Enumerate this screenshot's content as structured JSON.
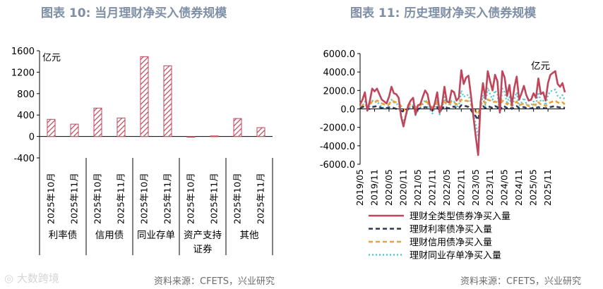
{
  "titles": {
    "left": "图表 10: 当月理财净买入债券规模",
    "right": "图表 11: 历史理财净买入债券规模"
  },
  "sources": {
    "left": "资料来源：CFETS，兴业研究",
    "right": "资料来源：CFETS，兴业研究"
  },
  "watermark": "大数跨境",
  "colors": {
    "bar_stroke": "#c0455b",
    "total": "#c0455b",
    "rate": "#2f3a56",
    "credit": "#e8a33b",
    "cd": "#56c8d0"
  },
  "chart_data": [
    {
      "type": "bar",
      "unit_label": "亿元",
      "ylim": [
        -400,
        1600
      ],
      "yticks": [
        -400,
        0,
        400,
        800,
        1200,
        1600
      ],
      "ytick_labels": [
        "-400",
        "0",
        "400",
        "800",
        "1200",
        "1600"
      ],
      "categories": [
        "2025年10月",
        "2025年11月",
        "2025年10月",
        "2025年11月",
        "2025年10月",
        "2025年11月",
        "2025年10月",
        "2025年11月",
        "2025年10月",
        "2025年11月"
      ],
      "groups": [
        {
          "name": "利率债",
          "lines": [
            "利率债"
          ]
        },
        {
          "name": "信用债",
          "lines": [
            "信用债"
          ]
        },
        {
          "name": "同业存单",
          "lines": [
            "同业存单"
          ]
        },
        {
          "name": "资产支持证券",
          "lines": [
            "资产支持",
            "证券"
          ]
        },
        {
          "name": "其他",
          "lines": [
            "其他"
          ]
        }
      ],
      "values": [
        320,
        230,
        530,
        345,
        1490,
        1320,
        -10,
        10,
        335,
        165
      ],
      "bar_style": "hatched"
    },
    {
      "type": "line",
      "unit_label": "亿元",
      "ylim": [
        -6000,
        6000
      ],
      "yticks": [
        -6000,
        -4000,
        -2000,
        0,
        2000,
        4000,
        6000
      ],
      "ytick_labels": [
        "-6000.0",
        "-4000.0",
        "-2000.0",
        "0.0",
        "2000.0",
        "4000.0",
        "6000.0"
      ],
      "x_tick_labels": [
        "2019/05",
        "2019/11",
        "2020/05",
        "2020/11",
        "2021/05",
        "2021/11",
        "2022/05",
        "2022/11",
        "2023/05",
        "2023/11",
        "2024/05",
        "2024/11",
        "2025/05",
        "2025/11"
      ],
      "legend_position": "bottom",
      "series": [
        {
          "name": "理财全类型债券净买入量",
          "style": "solid",
          "values": [
            500,
            1000,
            1800,
            -200,
            800,
            2200,
            1900,
            2200,
            1600,
            1000,
            800,
            600,
            1300,
            2400,
            1700,
            1600,
            1200,
            -800,
            -1900,
            -700,
            400,
            900,
            1200,
            -600,
            400,
            500,
            1300,
            2000,
            1600,
            300,
            -200,
            600,
            1800,
            -400,
            400,
            2400,
            800,
            700,
            2000,
            1800,
            900,
            1200,
            4200,
            2700,
            3400,
            3600,
            1500,
            -800,
            -3000,
            -5000,
            700,
            2800,
            1100,
            4100,
            3000,
            2000,
            3700,
            3000,
            -400,
            4100,
            3400,
            1400,
            2600,
            400,
            2300,
            3500,
            1000,
            1700,
            2500,
            1500,
            900,
            1000,
            1700,
            1200,
            3300,
            1600,
            1800,
            900,
            2800,
            3700,
            3900,
            4100,
            2700,
            2400,
            2800,
            1800
          ]
        },
        {
          "name": "理财利率债净买入量",
          "style": "dashed",
          "values": [
            100,
            200,
            300,
            50,
            0,
            200,
            250,
            300,
            200,
            100,
            50,
            100,
            150,
            200,
            100,
            0,
            -100,
            -200,
            -300,
            -100,
            0,
            100,
            200,
            -200,
            0,
            50,
            100,
            200,
            150,
            0,
            -100,
            0,
            200,
            -200,
            0,
            300,
            100,
            50,
            200,
            250,
            100,
            100,
            400,
            300,
            300,
            200,
            -100,
            -500,
            -800,
            -1200,
            100,
            300,
            100,
            300,
            200,
            100,
            300,
            200,
            -200,
            300,
            250,
            100,
            200,
            0,
            200,
            300,
            100,
            150,
            200,
            100,
            50,
            50,
            150,
            100,
            200,
            100,
            100,
            50,
            150,
            200,
            250,
            300,
            200,
            150,
            200,
            100
          ]
        },
        {
          "name": "理财信用债净买入量",
          "style": "dashed",
          "values": [
            200,
            400,
            600,
            200,
            500,
            800,
            700,
            900,
            800,
            600,
            500,
            400,
            500,
            900,
            800,
            700,
            600,
            300,
            -200,
            100,
            300,
            500,
            500,
            200,
            300,
            400,
            600,
            800,
            700,
            300,
            200,
            300,
            700,
            200,
            300,
            800,
            500,
            500,
            800,
            700,
            500,
            600,
            1000,
            800,
            900,
            800,
            500,
            0,
            -300,
            -600,
            300,
            900,
            600,
            1000,
            900,
            700,
            800,
            700,
            200,
            900,
            800,
            500,
            700,
            300,
            600,
            800,
            400,
            500,
            600,
            500,
            300,
            300,
            500,
            400,
            700,
            500,
            500,
            300,
            600,
            700,
            800,
            900,
            700,
            600,
            700,
            500
          ]
        },
        {
          "name": "理财同业存单净买入量",
          "style": "dotted",
          "values": [
            200,
            400,
            800,
            -200,
            300,
            900,
            700,
            800,
            500,
            200,
            100,
            0,
            500,
            1000,
            700,
            600,
            400,
            -600,
            -1400,
            -700,
            0,
            300,
            400,
            -700,
            0,
            100,
            500,
            1000,
            700,
            -100,
            -500,
            200,
            900,
            -600,
            0,
            1300,
            100,
            100,
            900,
            800,
            200,
            400,
            2000,
            1300,
            1500,
            1500,
            700,
            -400,
            -1700,
            -3000,
            200,
            1500,
            400,
            2300,
            1600,
            1000,
            2000,
            1600,
            -400,
            2200,
            1800,
            700,
            1300,
            100,
            1100,
            1800,
            300,
            700,
            1200,
            600,
            400,
            400,
            800,
            500,
            1800,
            800,
            900,
            400,
            1500,
            1900,
            2000,
            2100,
            1400,
            1200,
            1500,
            900
          ]
        }
      ]
    }
  ]
}
